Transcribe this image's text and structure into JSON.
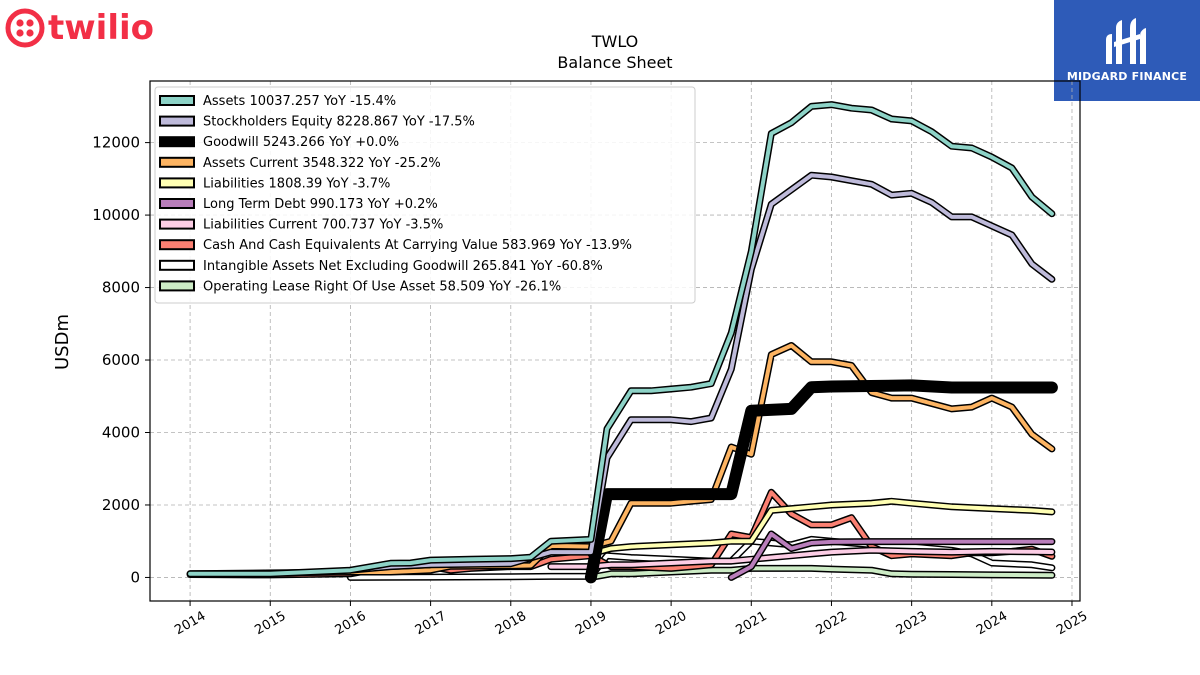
{
  "brand": {
    "logo_text": "twilio",
    "logo_color": "#f22f46",
    "badge_text": "MIDGARD FINANCE",
    "badge_color": "#2e5bb8"
  },
  "chart_data": {
    "type": "line",
    "title": "TWLO",
    "subtitle": "Balance  Sheet",
    "ylabel": "USDm",
    "xlabel": "",
    "xlim": [
      2013.5,
      2025.1
    ],
    "ylim": [
      -650,
      13700
    ],
    "x_ticks": [
      2014,
      2015,
      2016,
      2017,
      2018,
      2019,
      2020,
      2021,
      2022,
      2023,
      2024,
      2025
    ],
    "y_ticks": [
      0,
      2000,
      4000,
      6000,
      8000,
      10000,
      12000
    ],
    "grid": true,
    "legend_position": "upper-left",
    "series": [
      {
        "name": "Assets",
        "legend": "Assets  10037.257 YoY -15.4%",
        "color": "#8dd3c7",
        "width": 4,
        "points": [
          [
            2014,
            100
          ],
          [
            2015,
            100
          ],
          [
            2016,
            200
          ],
          [
            2016.5,
            390
          ],
          [
            2016.75,
            400
          ],
          [
            2017,
            480
          ],
          [
            2017.5,
            500
          ],
          [
            2018,
            520
          ],
          [
            2018.25,
            560
          ],
          [
            2018.5,
            1000
          ],
          [
            2019,
            1050
          ],
          [
            2019.2,
            4100
          ],
          [
            2019.5,
            5150
          ],
          [
            2019.75,
            5150
          ],
          [
            2020,
            5200
          ],
          [
            2020.25,
            5250
          ],
          [
            2020.5,
            5350
          ],
          [
            2020.75,
            6750
          ],
          [
            2021,
            9000
          ],
          [
            2021.25,
            12250
          ],
          [
            2021.5,
            12550
          ],
          [
            2021.75,
            13000
          ],
          [
            2022,
            13050
          ],
          [
            2022.25,
            12950
          ],
          [
            2022.5,
            12900
          ],
          [
            2022.75,
            12650
          ],
          [
            2023,
            12600
          ],
          [
            2023.25,
            12300
          ],
          [
            2023.5,
            11900
          ],
          [
            2023.75,
            11850
          ],
          [
            2024,
            11600
          ],
          [
            2024.25,
            11300
          ],
          [
            2024.5,
            10500
          ],
          [
            2024.75,
            10037
          ]
        ]
      },
      {
        "name": "Stockholders Equity",
        "legend": "Stockholders Equity  8228.867 YoY -17.5%",
        "color": "#bebada",
        "width": 4,
        "points": [
          [
            2016,
            200
          ],
          [
            2016.5,
            300
          ],
          [
            2017,
            350
          ],
          [
            2018,
            380
          ],
          [
            2018.5,
            700
          ],
          [
            2019,
            700
          ],
          [
            2019.2,
            3300
          ],
          [
            2019.5,
            4350
          ],
          [
            2020,
            4350
          ],
          [
            2020.25,
            4300
          ],
          [
            2020.5,
            4400
          ],
          [
            2020.75,
            5750
          ],
          [
            2021,
            8500
          ],
          [
            2021.25,
            10300
          ],
          [
            2021.5,
            10700
          ],
          [
            2021.75,
            11100
          ],
          [
            2022,
            11050
          ],
          [
            2022.25,
            10950
          ],
          [
            2022.5,
            10850
          ],
          [
            2022.75,
            10550
          ],
          [
            2023,
            10600
          ],
          [
            2023.25,
            10350
          ],
          [
            2023.5,
            9950
          ],
          [
            2023.75,
            9950
          ],
          [
            2024,
            9700
          ],
          [
            2024.25,
            9450
          ],
          [
            2024.5,
            8650
          ],
          [
            2024.75,
            8229
          ]
        ]
      },
      {
        "name": "Goodwill",
        "legend": "Goodwill  5243.266 YoY +0.0%",
        "color": "#000000",
        "width": 9,
        "points": [
          [
            2019,
            0
          ],
          [
            2019.2,
            2300
          ],
          [
            2020.5,
            2300
          ],
          [
            2020.75,
            2300
          ],
          [
            2021,
            4600
          ],
          [
            2021.5,
            4650
          ],
          [
            2021.75,
            5250
          ],
          [
            2022,
            5270
          ],
          [
            2023,
            5300
          ],
          [
            2023.5,
            5243
          ],
          [
            2024.75,
            5243
          ]
        ]
      },
      {
        "name": "Assets Current",
        "legend": "Assets Current  3548.322 YoY -25.2%",
        "color": "#fdb462",
        "width": 4,
        "points": [
          [
            2014,
            100
          ],
          [
            2016,
            150
          ],
          [
            2016.5,
            150
          ],
          [
            2017,
            200
          ],
          [
            2017.25,
            310
          ],
          [
            2018,
            320
          ],
          [
            2018.25,
            330
          ],
          [
            2018.5,
            870
          ],
          [
            2019,
            850
          ],
          [
            2019.25,
            1000
          ],
          [
            2019.5,
            2050
          ],
          [
            2020,
            2050
          ],
          [
            2020.25,
            2100
          ],
          [
            2020.5,
            2150
          ],
          [
            2020.75,
            3600
          ],
          [
            2021,
            3400
          ],
          [
            2021.25,
            6150
          ],
          [
            2021.5,
            6400
          ],
          [
            2021.75,
            5950
          ],
          [
            2022,
            5950
          ],
          [
            2022.25,
            5850
          ],
          [
            2022.5,
            5100
          ],
          [
            2022.75,
            4950
          ],
          [
            2023,
            4950
          ],
          [
            2023.25,
            4800
          ],
          [
            2023.5,
            4650
          ],
          [
            2023.75,
            4700
          ],
          [
            2024,
            4950
          ],
          [
            2024.25,
            4700
          ],
          [
            2024.5,
            3950
          ],
          [
            2024.75,
            3548
          ]
        ]
      },
      {
        "name": "Liabilities",
        "legend": "Liabilities  1808.39 YoY -3.7%",
        "color": "#ffffb3",
        "width": 4,
        "points": [
          [
            2019,
            650
          ],
          [
            2019.25,
            800
          ],
          [
            2019.5,
            850
          ],
          [
            2020,
            900
          ],
          [
            2020.5,
            950
          ],
          [
            2020.75,
            1000
          ],
          [
            2021,
            1000
          ],
          [
            2021.25,
            1850
          ],
          [
            2021.5,
            1900
          ],
          [
            2021.75,
            1950
          ],
          [
            2022,
            2000
          ],
          [
            2022.5,
            2050
          ],
          [
            2022.75,
            2100
          ],
          [
            2023,
            2050
          ],
          [
            2023.5,
            1950
          ],
          [
            2024,
            1900
          ],
          [
            2024.5,
            1850
          ],
          [
            2024.75,
            1808
          ]
        ]
      },
      {
        "name": "Long Term Debt",
        "legend": "Long Term Debt  990.173 YoY +0.2%",
        "color": "#b97ebb",
        "width": 4,
        "points": [
          [
            2020.75,
            0
          ],
          [
            2021,
            300
          ],
          [
            2021.25,
            1200
          ],
          [
            2021.5,
            800
          ],
          [
            2021.75,
            950
          ],
          [
            2022,
            980
          ],
          [
            2022.5,
            990
          ],
          [
            2024.75,
            990
          ]
        ]
      },
      {
        "name": "Liabilities Current",
        "legend": "Liabilities Current  700.737 YoY -3.5%",
        "color": "#fccde5",
        "width": 4,
        "points": [
          [
            2018.5,
            300
          ],
          [
            2019,
            300
          ],
          [
            2019.25,
            350
          ],
          [
            2019.5,
            350
          ],
          [
            2020,
            400
          ],
          [
            2020.5,
            450
          ],
          [
            2020.75,
            450
          ],
          [
            2021,
            500
          ],
          [
            2021.25,
            550
          ],
          [
            2021.5,
            600
          ],
          [
            2021.75,
            650
          ],
          [
            2022,
            700
          ],
          [
            2022.5,
            750
          ],
          [
            2023,
            720
          ],
          [
            2023.5,
            700
          ],
          [
            2024,
            720
          ],
          [
            2024.5,
            710
          ],
          [
            2024.75,
            701
          ]
        ]
      },
      {
        "name": "Cash And Cash Equivalents At Carrying Value",
        "legend": "Cash And Cash Equivalents At Carrying Value  583.969 YoY -13.9%",
        "color": "#fb8072",
        "width": 4,
        "points": [
          [
            2014,
            80
          ],
          [
            2015,
            70
          ],
          [
            2016,
            100
          ],
          [
            2016.5,
            300
          ],
          [
            2017,
            300
          ],
          [
            2017.25,
            200
          ],
          [
            2017.5,
            250
          ],
          [
            2018,
            300
          ],
          [
            2018.25,
            300
          ],
          [
            2018.5,
            500
          ],
          [
            2019,
            600
          ],
          [
            2019.25,
            300
          ],
          [
            2019.5,
            300
          ],
          [
            2020,
            250
          ],
          [
            2020.25,
            300
          ],
          [
            2020.5,
            350
          ],
          [
            2020.75,
            1200
          ],
          [
            2021,
            1100
          ],
          [
            2021.25,
            2350
          ],
          [
            2021.5,
            1750
          ],
          [
            2021.75,
            1450
          ],
          [
            2022,
            1450
          ],
          [
            2022.25,
            1650
          ],
          [
            2022.5,
            850
          ],
          [
            2022.75,
            600
          ],
          [
            2023,
            650
          ],
          [
            2023.5,
            600
          ],
          [
            2023.75,
            680
          ],
          [
            2024,
            680
          ],
          [
            2024.25,
            720
          ],
          [
            2024.5,
            780
          ],
          [
            2024.75,
            584
          ]
        ]
      },
      {
        "name": "Intangible Assets Net Excluding Goodwill",
        "legend": "Intangible Assets Net Excluding Goodwill  265.841 YoY -60.8%",
        "color": "#ffffff",
        "width": 4,
        "points": [
          [
            2016,
            0
          ],
          [
            2017,
            10
          ],
          [
            2018,
            20
          ],
          [
            2018.5,
            30
          ],
          [
            2019,
            30
          ],
          [
            2019.2,
            600
          ],
          [
            2019.5,
            550
          ],
          [
            2020,
            500
          ],
          [
            2020.5,
            450
          ],
          [
            2020.75,
            450
          ],
          [
            2021,
            1000
          ],
          [
            2021.25,
            950
          ],
          [
            2021.5,
            900
          ],
          [
            2021.75,
            1050
          ],
          [
            2022,
            1000
          ],
          [
            2022.5,
            900
          ],
          [
            2023,
            850
          ],
          [
            2023.5,
            750
          ],
          [
            2023.75,
            650
          ],
          [
            2024,
            400
          ],
          [
            2024.5,
            350
          ],
          [
            2024.75,
            266
          ]
        ]
      },
      {
        "name": "Operating Lease Right Of Use Asset",
        "legend": "Operating Lease Right Of Use Asset  58.509 YoY -26.1%",
        "color": "#ccebc5",
        "width": 4,
        "points": [
          [
            2019,
            0
          ],
          [
            2019.25,
            100
          ],
          [
            2019.5,
            100
          ],
          [
            2020,
            150
          ],
          [
            2020.5,
            200
          ],
          [
            2020.75,
            200
          ],
          [
            2021,
            250
          ],
          [
            2021.5,
            250
          ],
          [
            2021.75,
            250
          ],
          [
            2022,
            230
          ],
          [
            2022.5,
            200
          ],
          [
            2022.75,
            100
          ],
          [
            2023,
            90
          ],
          [
            2023.5,
            80
          ],
          [
            2024,
            70
          ],
          [
            2024.5,
            65
          ],
          [
            2024.75,
            59
          ]
        ]
      }
    ]
  }
}
